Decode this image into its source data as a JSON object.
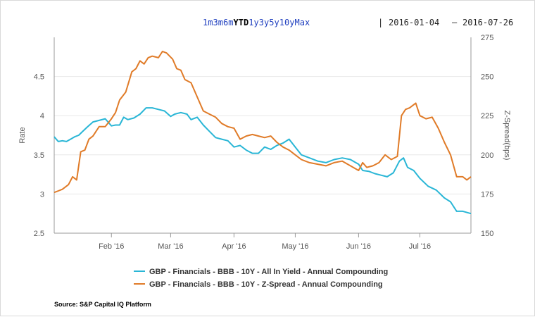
{
  "toolbar": {
    "ranges": [
      "1m",
      "3m",
      "6m",
      "YTD",
      "1y",
      "3y",
      "5y",
      "10y",
      "Max"
    ],
    "active_range": "YTD",
    "separator": "|",
    "date_from": "2016-01-04",
    "date_dash": "–",
    "date_to": "2016-07-26"
  },
  "source": "Source: S&P Capital IQ Platform",
  "colors": {
    "yield": "#29b6d6",
    "spread": "#e07b28",
    "grid": "#e8e8e8",
    "axis": "#999999"
  },
  "chart_data": {
    "type": "line",
    "title": "",
    "xlabel": "",
    "ylabel": "Rate",
    "y2label": "Z-Spread(bps)",
    "ylim": [
      2.5,
      5
    ],
    "y2lim": [
      150,
      275
    ],
    "yticks": [
      "2.5",
      "3",
      "3.5",
      "4",
      "4.5"
    ],
    "y2ticks": [
      "150",
      "175",
      "200",
      "225",
      "250",
      "275"
    ],
    "xlim": [
      "2016-01-04",
      "2016-07-26"
    ],
    "x_ticks": [
      {
        "date": "2016-02-01",
        "label": "Feb '16"
      },
      {
        "date": "2016-03-01",
        "label": "Mar '16"
      },
      {
        "date": "2016-04-01",
        "label": "Apr '16"
      },
      {
        "date": "2016-05-01",
        "label": "May '16"
      },
      {
        "date": "2016-06-01",
        "label": "Jun '16"
      },
      {
        "date": "2016-07-01",
        "label": "Jul '16"
      }
    ],
    "grid": true,
    "legend_position": "bottom",
    "series": [
      {
        "name": "GBP - Financials - BBB - 10Y - All In Yield - Annual Compounding",
        "axis": "left",
        "points": [
          [
            "2016-01-04",
            3.73
          ],
          [
            "2016-01-06",
            3.67
          ],
          [
            "2016-01-08",
            3.68
          ],
          [
            "2016-01-10",
            3.67
          ],
          [
            "2016-01-12",
            3.7
          ],
          [
            "2016-01-14",
            3.73
          ],
          [
            "2016-01-16",
            3.75
          ],
          [
            "2016-01-18",
            3.8
          ],
          [
            "2016-01-20",
            3.85
          ],
          [
            "2016-01-23",
            3.92
          ],
          [
            "2016-01-26",
            3.94
          ],
          [
            "2016-01-29",
            3.96
          ],
          [
            "2016-02-01",
            3.87
          ],
          [
            "2016-02-03",
            3.88
          ],
          [
            "2016-02-05",
            3.88
          ],
          [
            "2016-02-07",
            3.98
          ],
          [
            "2016-02-09",
            3.95
          ],
          [
            "2016-02-12",
            3.97
          ],
          [
            "2016-02-15",
            4.02
          ],
          [
            "2016-02-18",
            4.1
          ],
          [
            "2016-02-21",
            4.1
          ],
          [
            "2016-02-24",
            4.08
          ],
          [
            "2016-02-27",
            4.06
          ],
          [
            "2016-03-01",
            3.99
          ],
          [
            "2016-03-03",
            4.02
          ],
          [
            "2016-03-06",
            4.04
          ],
          [
            "2016-03-09",
            4.02
          ],
          [
            "2016-03-11",
            3.95
          ],
          [
            "2016-03-14",
            3.98
          ],
          [
            "2016-03-17",
            3.88
          ],
          [
            "2016-03-20",
            3.8
          ],
          [
            "2016-03-23",
            3.72
          ],
          [
            "2016-03-26",
            3.7
          ],
          [
            "2016-03-29",
            3.68
          ],
          [
            "2016-04-01",
            3.6
          ],
          [
            "2016-04-04",
            3.62
          ],
          [
            "2016-04-07",
            3.56
          ],
          [
            "2016-04-10",
            3.52
          ],
          [
            "2016-04-13",
            3.52
          ],
          [
            "2016-04-16",
            3.6
          ],
          [
            "2016-04-19",
            3.57
          ],
          [
            "2016-04-22",
            3.62
          ],
          [
            "2016-04-25",
            3.65
          ],
          [
            "2016-04-28",
            3.7
          ],
          [
            "2016-05-01",
            3.6
          ],
          [
            "2016-05-04",
            3.5
          ],
          [
            "2016-05-08",
            3.46
          ],
          [
            "2016-05-12",
            3.42
          ],
          [
            "2016-05-16",
            3.4
          ],
          [
            "2016-05-20",
            3.44
          ],
          [
            "2016-05-24",
            3.46
          ],
          [
            "2016-05-28",
            3.44
          ],
          [
            "2016-06-01",
            3.38
          ],
          [
            "2016-06-03",
            3.3
          ],
          [
            "2016-06-06",
            3.29
          ],
          [
            "2016-06-09",
            3.26
          ],
          [
            "2016-06-12",
            3.24
          ],
          [
            "2016-06-15",
            3.22
          ],
          [
            "2016-06-18",
            3.27
          ],
          [
            "2016-06-21",
            3.42
          ],
          [
            "2016-06-23",
            3.46
          ],
          [
            "2016-06-25",
            3.34
          ],
          [
            "2016-06-28",
            3.3
          ],
          [
            "2016-07-01",
            3.2
          ],
          [
            "2016-07-05",
            3.1
          ],
          [
            "2016-07-09",
            3.05
          ],
          [
            "2016-07-13",
            2.95
          ],
          [
            "2016-07-16",
            2.9
          ],
          [
            "2016-07-19",
            2.78
          ],
          [
            "2016-07-22",
            2.78
          ],
          [
            "2016-07-26",
            2.75
          ]
        ]
      },
      {
        "name": "GBP - Financials - BBB - 10Y - Z-Spread - Annual Compounding",
        "axis": "right",
        "points": [
          [
            "2016-01-04",
            176
          ],
          [
            "2016-01-06",
            177
          ],
          [
            "2016-01-08",
            178
          ],
          [
            "2016-01-11",
            181
          ],
          [
            "2016-01-13",
            186
          ],
          [
            "2016-01-15",
            184
          ],
          [
            "2016-01-17",
            202
          ],
          [
            "2016-01-19",
            203
          ],
          [
            "2016-01-21",
            210
          ],
          [
            "2016-01-23",
            212
          ],
          [
            "2016-01-26",
            218
          ],
          [
            "2016-01-29",
            218
          ],
          [
            "2016-02-01",
            223
          ],
          [
            "2016-02-03",
            227
          ],
          [
            "2016-02-05",
            235
          ],
          [
            "2016-02-08",
            240
          ],
          [
            "2016-02-11",
            253
          ],
          [
            "2016-02-13",
            255
          ],
          [
            "2016-02-15",
            260
          ],
          [
            "2016-02-17",
            258
          ],
          [
            "2016-02-19",
            262
          ],
          [
            "2016-02-21",
            263
          ],
          [
            "2016-02-24",
            262
          ],
          [
            "2016-02-26",
            266
          ],
          [
            "2016-02-28",
            265
          ],
          [
            "2016-03-02",
            261
          ],
          [
            "2016-03-04",
            255
          ],
          [
            "2016-03-06",
            254
          ],
          [
            "2016-03-08",
            248
          ],
          [
            "2016-03-11",
            246
          ],
          [
            "2016-03-14",
            237
          ],
          [
            "2016-03-17",
            228
          ],
          [
            "2016-03-20",
            226
          ],
          [
            "2016-03-23",
            224
          ],
          [
            "2016-03-26",
            220
          ],
          [
            "2016-03-29",
            218
          ],
          [
            "2016-04-01",
            217
          ],
          [
            "2016-04-04",
            210
          ],
          [
            "2016-04-07",
            212
          ],
          [
            "2016-04-10",
            213
          ],
          [
            "2016-04-13",
            212
          ],
          [
            "2016-04-16",
            211
          ],
          [
            "2016-04-19",
            212
          ],
          [
            "2016-04-22",
            208
          ],
          [
            "2016-04-25",
            205
          ],
          [
            "2016-04-28",
            203
          ],
          [
            "2016-05-01",
            200
          ],
          [
            "2016-05-04",
            197
          ],
          [
            "2016-05-08",
            195
          ],
          [
            "2016-05-12",
            194
          ],
          [
            "2016-05-16",
            193
          ],
          [
            "2016-05-20",
            195
          ],
          [
            "2016-05-24",
            196
          ],
          [
            "2016-05-28",
            193
          ],
          [
            "2016-06-01",
            190
          ],
          [
            "2016-06-03",
            195
          ],
          [
            "2016-06-05",
            192
          ],
          [
            "2016-06-08",
            193
          ],
          [
            "2016-06-11",
            195
          ],
          [
            "2016-06-14",
            200
          ],
          [
            "2016-06-17",
            197
          ],
          [
            "2016-06-20",
            199
          ],
          [
            "2016-06-22",
            225
          ],
          [
            "2016-06-24",
            229
          ],
          [
            "2016-06-26",
            230
          ],
          [
            "2016-06-29",
            233
          ],
          [
            "2016-07-01",
            225
          ],
          [
            "2016-07-04",
            223
          ],
          [
            "2016-07-07",
            224
          ],
          [
            "2016-07-10",
            217
          ],
          [
            "2016-07-13",
            208
          ],
          [
            "2016-07-16",
            200
          ],
          [
            "2016-07-19",
            186
          ],
          [
            "2016-07-22",
            186
          ],
          [
            "2016-07-24",
            184
          ],
          [
            "2016-07-26",
            186
          ]
        ]
      }
    ]
  }
}
